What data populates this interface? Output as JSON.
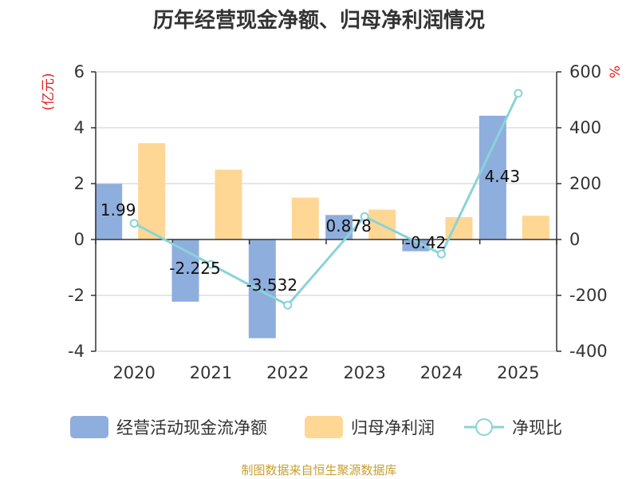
{
  "chart_data": {
    "type": "bar+line",
    "title": "历年经营现金净额、归母净利润情况",
    "categories": [
      "2020",
      "2021",
      "2022",
      "2023",
      "2024",
      "2025"
    ],
    "series": [
      {
        "name": "经营活动现金流净额",
        "type": "bar",
        "axis": "left",
        "color": "#8eaedd",
        "values": [
          1.99,
          -2.225,
          -3.532,
          0.878,
          -0.42,
          4.43
        ],
        "labels": [
          "1.99",
          "-2.225",
          "-3.532",
          "0.878",
          "-0.42",
          "4.43"
        ]
      },
      {
        "name": "归母净利润",
        "type": "bar",
        "axis": "left",
        "color": "#fed794",
        "values": [
          3.45,
          2.5,
          1.5,
          1.07,
          0.8,
          0.85
        ]
      },
      {
        "name": "净现比",
        "type": "line",
        "axis": "right",
        "color": "#89d3d9",
        "values": [
          58,
          -89,
          -235,
          82,
          -52,
          523
        ]
      }
    ],
    "y_left": {
      "label": "(亿元)",
      "min": -4,
      "max": 6,
      "ticks": [
        -4,
        -2,
        0,
        2,
        4,
        6
      ],
      "label_color": "#e02020"
    },
    "y_right": {
      "label": "%",
      "min": -400,
      "max": 600,
      "ticks": [
        -400,
        -200,
        0,
        200,
        400,
        600
      ],
      "label_color": "#e02020"
    },
    "grid": true,
    "legend_position": "bottom"
  },
  "source_text": "制图数据来自恒生聚源数据库",
  "source_color": "#c8a030"
}
